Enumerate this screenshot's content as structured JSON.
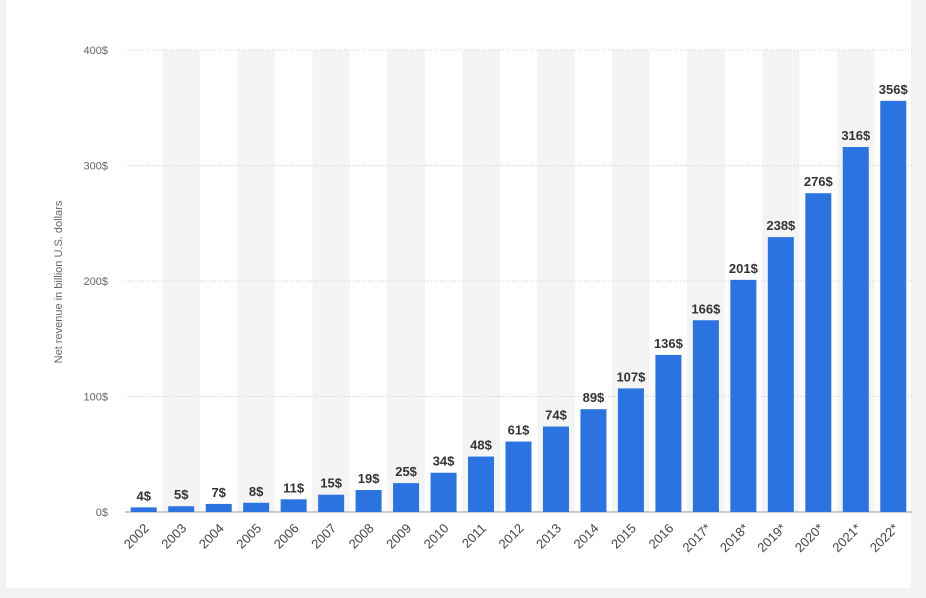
{
  "colors": {
    "bar": "#2a73e0",
    "band": "#f4f4f4",
    "grid": "#cccccc"
  },
  "chart_data": {
    "type": "bar",
    "ylabel": "Net revenue in billion U.S. dollars",
    "ylim": [
      0,
      400
    ],
    "y_ticks": [
      {
        "value": 0,
        "label": "0$"
      },
      {
        "value": 100,
        "label": "100$"
      },
      {
        "value": 200,
        "label": "200$"
      },
      {
        "value": 300,
        "label": "300$"
      },
      {
        "value": 400,
        "label": "400$"
      }
    ],
    "categories": [
      "2002",
      "2003",
      "2004",
      "2005",
      "2006",
      "2007",
      "2008",
      "2009",
      "2010",
      "2011",
      "2012",
      "2013",
      "2014",
      "2015",
      "2016",
      "2017*",
      "2018*",
      "2019*",
      "2020*",
      "2021*",
      "2022*"
    ],
    "values": [
      4,
      5,
      7,
      8,
      11,
      15,
      19,
      25,
      34,
      48,
      61,
      74,
      89,
      107,
      136,
      166,
      201,
      238,
      276,
      316,
      356
    ],
    "data_labels": [
      "4$",
      "5$",
      "7$",
      "8$",
      "11$",
      "15$",
      "19$",
      "25$",
      "34$",
      "48$",
      "61$",
      "74$",
      "89$",
      "107$",
      "136$",
      "166$",
      "201$",
      "238$",
      "276$",
      "316$",
      "356$"
    ],
    "grid": true,
    "legend": "none"
  }
}
